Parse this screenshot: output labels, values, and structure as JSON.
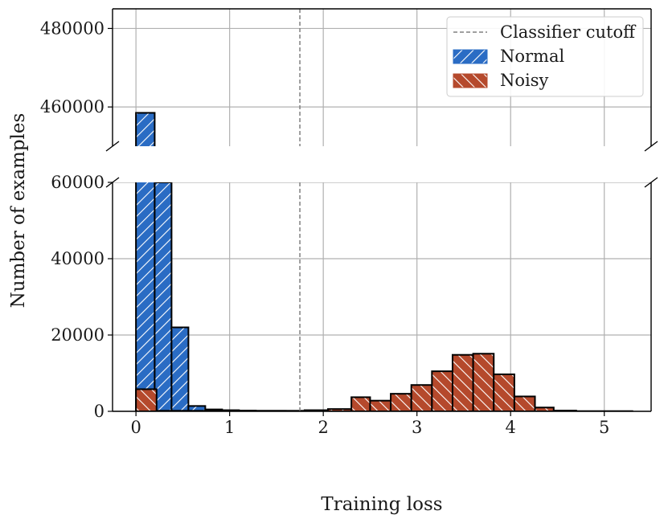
{
  "chart_data": {
    "type": "bar",
    "subtype": "histogram-broken-y-axis",
    "xlabel": "Training loss",
    "ylabel": "Number of examples",
    "grid": true,
    "legend_position": "top-right",
    "xlim": [
      -0.25,
      5.5
    ],
    "x_ticks": [
      "0",
      "1",
      "2",
      "3",
      "4",
      "5"
    ],
    "ylim_upper": [
      450000,
      485000
    ],
    "ylim_lower": [
      0,
      60000
    ],
    "y_ticks_upper": [
      "460000",
      "480000"
    ],
    "y_ticks_lower": [
      "0",
      "20000",
      "40000",
      "60000"
    ],
    "cutoff": {
      "name": "Classifier cutoff",
      "x": 1.75,
      "color": "#808080"
    },
    "series": [
      {
        "name": "Normal",
        "color": "#2a6cc4",
        "hatch": "forward",
        "bins": [
          {
            "x0": 0.0,
            "x1": 0.2,
            "value": 458500
          },
          {
            "x0": 0.2,
            "x1": 0.38,
            "value": 60000
          },
          {
            "x0": 0.38,
            "x1": 0.56,
            "value": 22000
          },
          {
            "x0": 0.56,
            "x1": 0.74,
            "value": 1400
          },
          {
            "x0": 0.74,
            "x1": 0.92,
            "value": 500
          },
          {
            "x0": 0.92,
            "x1": 1.1,
            "value": 300
          },
          {
            "x0": 1.1,
            "x1": 1.28,
            "value": 200
          },
          {
            "x0": 1.28,
            "x1": 1.6,
            "value": 120
          },
          {
            "x0": 1.6,
            "x1": 1.9,
            "value": 80
          },
          {
            "x0": 1.9,
            "x1": 2.35,
            "value": 50
          },
          {
            "x0": 2.35,
            "x1": 2.55,
            "value": 1700
          },
          {
            "x0": 2.55,
            "x1": 2.75,
            "value": 80
          }
        ]
      },
      {
        "name": "Noisy",
        "color": "#b5492c",
        "hatch": "backward",
        "bins": [
          {
            "x0": 0.0,
            "x1": 0.22,
            "value": 5800
          },
          {
            "x0": 0.22,
            "x1": 1.8,
            "value": 150
          },
          {
            "x0": 1.8,
            "x1": 2.05,
            "value": 300
          },
          {
            "x0": 2.05,
            "x1": 2.3,
            "value": 600
          },
          {
            "x0": 2.3,
            "x1": 2.5,
            "value": 3700
          },
          {
            "x0": 2.5,
            "x1": 2.72,
            "value": 2800
          },
          {
            "x0": 2.72,
            "x1": 2.94,
            "value": 4600
          },
          {
            "x0": 2.94,
            "x1": 3.16,
            "value": 6900
          },
          {
            "x0": 3.16,
            "x1": 3.38,
            "value": 10500
          },
          {
            "x0": 3.38,
            "x1": 3.6,
            "value": 14800
          },
          {
            "x0": 3.6,
            "x1": 3.82,
            "value": 15100
          },
          {
            "x0": 3.82,
            "x1": 4.04,
            "value": 9700
          },
          {
            "x0": 4.04,
            "x1": 4.26,
            "value": 3900
          },
          {
            "x0": 4.26,
            "x1": 4.46,
            "value": 1000
          },
          {
            "x0": 4.46,
            "x1": 4.7,
            "value": 200
          },
          {
            "x0": 4.7,
            "x1": 5.3,
            "value": 60
          }
        ]
      }
    ]
  }
}
